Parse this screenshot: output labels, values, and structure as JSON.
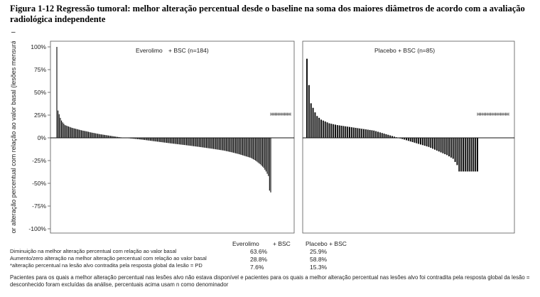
{
  "figure": {
    "title": "Figura 1-12 Regressão tumoral: melhor alteração percentual desde o baseline na soma dos maiores diâmetros de acordo com a avaliação radiológica independente",
    "dash": "–"
  },
  "chart_data": {
    "type": "bar",
    "ylabel": "Melhor alteração percentual com relação ao valor basal (lesões mensuráveis)",
    "ylim": [
      -100,
      100
    ],
    "yticks": [
      "100%",
      "75%",
      "50%",
      "25%",
      "0%",
      "-25%",
      "-50%",
      "-75%",
      "-100%"
    ],
    "panels": [
      {
        "name": "Everolimo + BSC (n=184)",
        "title_part1": "Everolimo",
        "title_part2": "+ BSC (n=184)",
        "n": 184,
        "key_values": [
          100,
          30,
          26,
          22,
          19,
          17,
          14,
          13,
          12,
          11,
          10,
          9,
          8,
          7,
          6,
          5,
          4,
          3,
          2,
          1,
          0,
          -1,
          -2,
          -4,
          -6,
          -8,
          -10,
          -12,
          -14,
          -16,
          -18,
          -20,
          -22,
          -25,
          -29,
          -33,
          -37,
          -42,
          -58,
          -60
        ],
        "key_positions": [
          0,
          1,
          2,
          3,
          4,
          5,
          7,
          9,
          11,
          13,
          16,
          19,
          22,
          26,
          29,
          33,
          37,
          42,
          47,
          52,
          58,
          66,
          73,
          85,
          97,
          110,
          122,
          133,
          143,
          150,
          156,
          161,
          166,
          170,
          174,
          177,
          179,
          181,
          182,
          183
        ],
        "unavailable_marker": "+"
      },
      {
        "name": "Placebo + BSC (n=85)",
        "title_part1": "Placebo + BSC (n=85)",
        "title_part2": "",
        "n": 85,
        "key_values": [
          87,
          58,
          38,
          33,
          28,
          24,
          20,
          18,
          16,
          15,
          14,
          13,
          12,
          11,
          10,
          9,
          8,
          6,
          4,
          2,
          0,
          -2,
          -4,
          -6,
          -8,
          -10,
          -13,
          -16,
          -19,
          -23,
          -30,
          -37
        ],
        "key_positions": [
          0,
          1,
          2,
          3,
          4,
          5,
          7,
          9,
          11,
          13,
          15,
          18,
          21,
          24,
          27,
          30,
          33,
          36,
          39,
          42,
          45,
          48,
          51,
          54,
          57,
          60,
          63,
          66,
          69,
          72,
          74,
          75
        ],
        "unavailable_marker": "+"
      }
    ]
  },
  "summary": {
    "header_everolimo": "Everolimo",
    "header_bsc1": "+ BSC",
    "header_placebo": "Placebo + BSC",
    "rows": [
      {
        "label": "Diminuição na melhor alteração percentual com relação ao valor basal",
        "everolimo": "63.6%",
        "placebo": "25.9%"
      },
      {
        "label": "Aumento/zero alteração na melhor alteração percentual com relação ao valor basal",
        "everolimo": "28.8%",
        "placebo": "58.8%"
      },
      {
        "label": "*alteração percentual na lesão alvo contradita pela resposta global da lesão = PD",
        "everolimo": "7.6%",
        "placebo": "15.3%"
      }
    ],
    "footnote": "Pacientes para os quais a melhor alteração percentual nas lesões alvo não estava disponível e pacientes para os quais a melhor alteração percentual nas lesões alvo foi contradita pela resposta global da lesão = desconhecido foram excluídas da análise, percentuais acima usam n como denominador"
  }
}
